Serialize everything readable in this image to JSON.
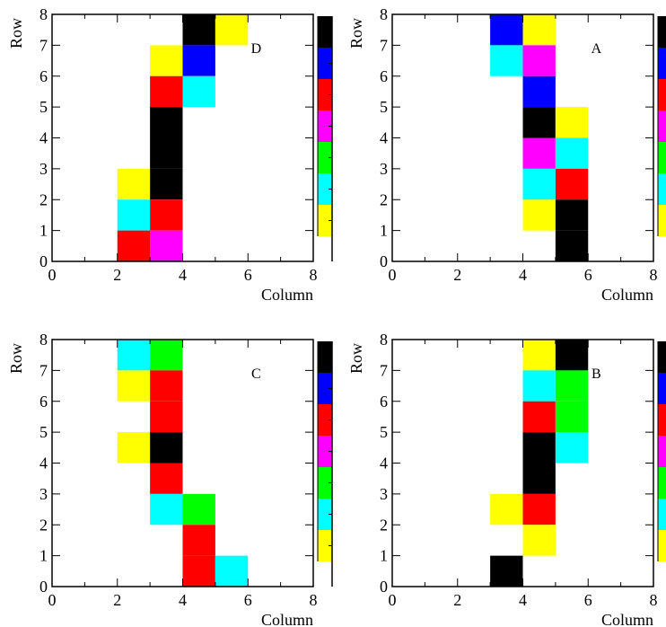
{
  "chart_data": [
    {
      "type": "heatmap",
      "panel_label": "D",
      "xlabel": "Column",
      "ylabel": "Row",
      "xlim": [
        0,
        8
      ],
      "ylim": [
        0,
        8
      ],
      "xticks": [
        "0",
        "2",
        "4",
        "6",
        "8"
      ],
      "yticks": [
        "0",
        "1",
        "2",
        "3",
        "4",
        "5",
        "6",
        "7",
        "8"
      ],
      "cells": [
        {
          "col": 4,
          "row": 7,
          "color": "#000000"
        },
        {
          "col": 5,
          "row": 7,
          "color": "#ffff00"
        },
        {
          "col": 3,
          "row": 6,
          "color": "#ffff00"
        },
        {
          "col": 4,
          "row": 6,
          "color": "#0000ff"
        },
        {
          "col": 3,
          "row": 5,
          "color": "#ff0000"
        },
        {
          "col": 4,
          "row": 5,
          "color": "#00ffff"
        },
        {
          "col": 3,
          "row": 4,
          "color": "#000000"
        },
        {
          "col": 3,
          "row": 3,
          "color": "#000000"
        },
        {
          "col": 2,
          "row": 2,
          "color": "#ffff00"
        },
        {
          "col": 3,
          "row": 2,
          "color": "#000000"
        },
        {
          "col": 2,
          "row": 1,
          "color": "#00ffff"
        },
        {
          "col": 3,
          "row": 1,
          "color": "#ff0000"
        },
        {
          "col": 2,
          "row": 0,
          "color": "#ff0000"
        },
        {
          "col": 3,
          "row": 0,
          "color": "#ff00ff"
        }
      ]
    },
    {
      "type": "heatmap",
      "panel_label": "A",
      "xlabel": "Column",
      "ylabel": "Row",
      "xlim": [
        0,
        8
      ],
      "ylim": [
        0,
        8
      ],
      "xticks": [
        "0",
        "2",
        "4",
        "6",
        "8"
      ],
      "yticks": [
        "0",
        "1",
        "2",
        "3",
        "4",
        "5",
        "6",
        "7",
        "8"
      ],
      "cells": [
        {
          "col": 3,
          "row": 7,
          "color": "#0000ff"
        },
        {
          "col": 4,
          "row": 7,
          "color": "#ffff00"
        },
        {
          "col": 3,
          "row": 6,
          "color": "#00ffff"
        },
        {
          "col": 4,
          "row": 6,
          "color": "#ff00ff"
        },
        {
          "col": 4,
          "row": 5,
          "color": "#0000ff"
        },
        {
          "col": 4,
          "row": 4,
          "color": "#000000"
        },
        {
          "col": 5,
          "row": 4,
          "color": "#ffff00"
        },
        {
          "col": 4,
          "row": 3,
          "color": "#ff00ff"
        },
        {
          "col": 5,
          "row": 3,
          "color": "#00ffff"
        },
        {
          "col": 4,
          "row": 2,
          "color": "#00ffff"
        },
        {
          "col": 5,
          "row": 2,
          "color": "#ff0000"
        },
        {
          "col": 4,
          "row": 1,
          "color": "#ffff00"
        },
        {
          "col": 5,
          "row": 1,
          "color": "#000000"
        },
        {
          "col": 5,
          "row": 0,
          "color": "#000000"
        }
      ]
    },
    {
      "type": "heatmap",
      "panel_label": "C",
      "xlabel": "Column",
      "ylabel": "Row",
      "xlim": [
        0,
        8
      ],
      "ylim": [
        0,
        8
      ],
      "xticks": [
        "0",
        "2",
        "4",
        "6",
        "8"
      ],
      "yticks": [
        "0",
        "1",
        "2",
        "3",
        "4",
        "5",
        "6",
        "7",
        "8"
      ],
      "cells": [
        {
          "col": 2,
          "row": 7,
          "color": "#00ffff"
        },
        {
          "col": 3,
          "row": 7,
          "color": "#00ff00"
        },
        {
          "col": 2,
          "row": 6,
          "color": "#ffff00"
        },
        {
          "col": 3,
          "row": 6,
          "color": "#ff0000"
        },
        {
          "col": 3,
          "row": 5,
          "color": "#ff0000"
        },
        {
          "col": 2,
          "row": 4,
          "color": "#ffff00"
        },
        {
          "col": 3,
          "row": 4,
          "color": "#000000"
        },
        {
          "col": 3,
          "row": 3,
          "color": "#ff0000"
        },
        {
          "col": 3,
          "row": 2,
          "color": "#00ffff"
        },
        {
          "col": 4,
          "row": 2,
          "color": "#00ff00"
        },
        {
          "col": 4,
          "row": 1,
          "color": "#ff0000"
        },
        {
          "col": 4,
          "row": 0,
          "color": "#ff0000"
        },
        {
          "col": 5,
          "row": 0,
          "color": "#00ffff"
        }
      ]
    },
    {
      "type": "heatmap",
      "panel_label": "B",
      "xlabel": "Column",
      "ylabel": "Row",
      "xlim": [
        0,
        8
      ],
      "ylim": [
        0,
        8
      ],
      "xticks": [
        "0",
        "2",
        "4",
        "6",
        "8"
      ],
      "yticks": [
        "0",
        "1",
        "2",
        "3",
        "4",
        "5",
        "6",
        "7",
        "8"
      ],
      "cells": [
        {
          "col": 4,
          "row": 7,
          "color": "#ffff00"
        },
        {
          "col": 5,
          "row": 7,
          "color": "#000000"
        },
        {
          "col": 4,
          "row": 6,
          "color": "#00ffff"
        },
        {
          "col": 5,
          "row": 6,
          "color": "#00ff00"
        },
        {
          "col": 4,
          "row": 5,
          "color": "#ff0000"
        },
        {
          "col": 5,
          "row": 5,
          "color": "#00ff00"
        },
        {
          "col": 4,
          "row": 4,
          "color": "#000000"
        },
        {
          "col": 5,
          "row": 4,
          "color": "#00ffff"
        },
        {
          "col": 4,
          "row": 3,
          "color": "#000000"
        },
        {
          "col": 3,
          "row": 2,
          "color": "#ffff00"
        },
        {
          "col": 4,
          "row": 2,
          "color": "#ff0000"
        },
        {
          "col": 4,
          "row": 1,
          "color": "#ffff00"
        },
        {
          "col": 3,
          "row": 0,
          "color": "#000000"
        }
      ]
    }
  ],
  "colorbar": {
    "colors": [
      "#ffff00",
      "#00ffff",
      "#00ff00",
      "#ff00ff",
      "#ff0000",
      "#0000ff",
      "#000000"
    ]
  }
}
